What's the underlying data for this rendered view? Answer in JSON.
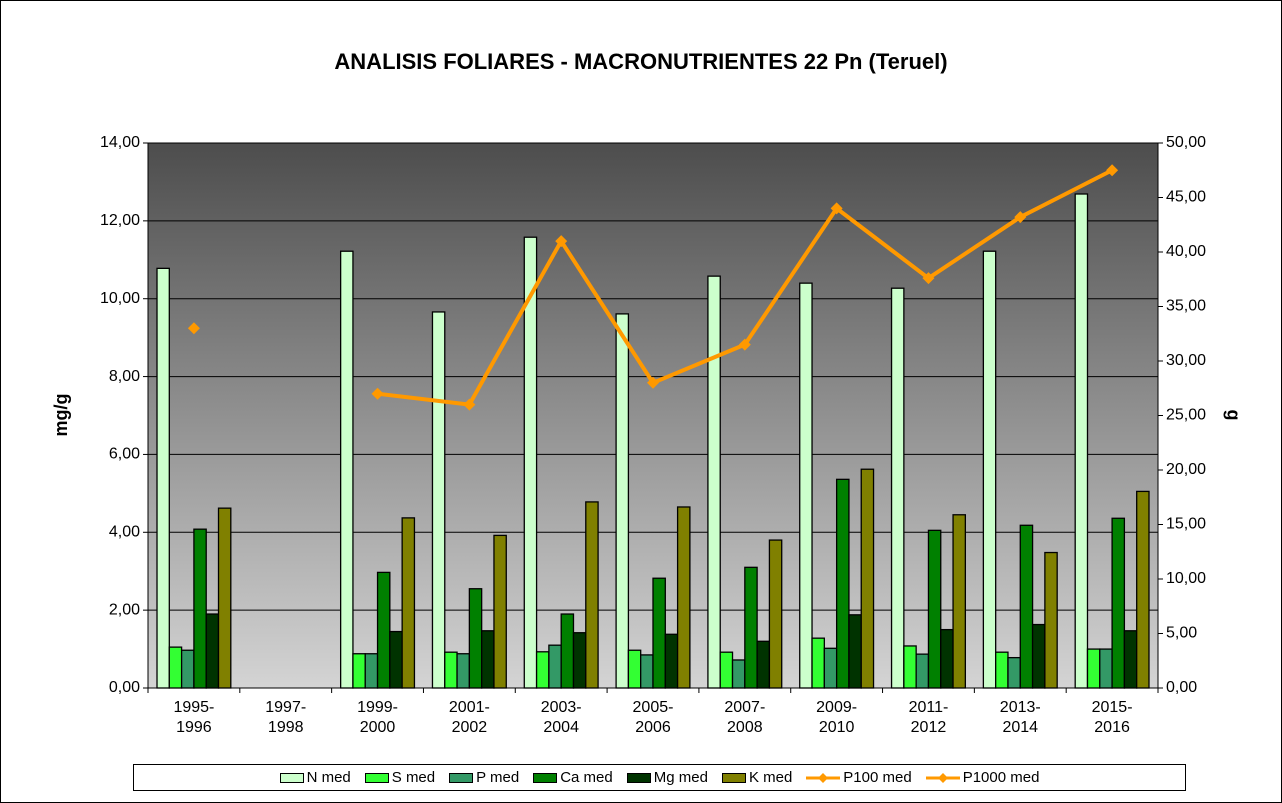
{
  "chart_data": {
    "type": "bar",
    "title": "ANALISIS FOLIARES - MACRONUTRIENTES 22 Pn (Teruel)",
    "y_label": "mg/g",
    "y2_label": "g",
    "categories": [
      "1995-1996",
      "1997-1998",
      "1999-2000",
      "2001-2002",
      "2003-2004",
      "2005-2006",
      "2007-2008",
      "2009-2010",
      "2011-2012",
      "2013-2014",
      "2015-2016"
    ],
    "series": [
      {
        "name": "N med",
        "type": "bar",
        "color": "#ccffcc",
        "values": [
          10.78,
          null,
          11.22,
          9.66,
          11.58,
          9.61,
          10.58,
          10.4,
          10.27,
          11.22,
          12.69
        ]
      },
      {
        "name": "S med",
        "type": "bar",
        "color": "#33ff33",
        "values": [
          1.05,
          null,
          0.88,
          0.92,
          0.93,
          0.97,
          0.92,
          1.28,
          1.08,
          0.92,
          1.0
        ]
      },
      {
        "name": "P med",
        "type": "bar",
        "color": "#339966",
        "values": [
          0.97,
          null,
          0.88,
          0.88,
          1.1,
          0.85,
          0.72,
          1.02,
          0.87,
          0.78,
          1.0
        ]
      },
      {
        "name": "Ca med",
        "type": "bar",
        "color": "#008000",
        "values": [
          4.08,
          null,
          2.97,
          2.55,
          1.9,
          2.82,
          3.1,
          5.36,
          4.05,
          4.18,
          4.36
        ]
      },
      {
        "name": "Mg med",
        "type": "bar",
        "color": "#003300",
        "values": [
          1.9,
          null,
          1.45,
          1.47,
          1.42,
          1.38,
          1.2,
          1.88,
          1.5,
          1.63,
          1.47
        ]
      },
      {
        "name": "K med",
        "type": "bar",
        "color": "#808000",
        "values": [
          4.62,
          null,
          4.37,
          3.92,
          4.78,
          4.65,
          3.8,
          5.62,
          4.45,
          3.48,
          5.05
        ]
      },
      {
        "name": "P100 med",
        "type": "line",
        "axis": "y2",
        "color": "#ff9900",
        "values": [
          33.0,
          null,
          27.0,
          26.0,
          41.0,
          28.0,
          31.5,
          44.0,
          37.6,
          43.2,
          47.5
        ]
      },
      {
        "name": "P1000 med",
        "type": "line",
        "axis": "y2",
        "color": "#ff9900",
        "values": [
          null,
          null,
          null,
          null,
          null,
          null,
          null,
          null,
          null,
          null,
          null
        ]
      }
    ],
    "ylim": [
      0,
      14
    ],
    "yticks": [
      {
        "value": 0,
        "label": "0,00"
      },
      {
        "value": 2,
        "label": "2,00"
      },
      {
        "value": 4,
        "label": "4,00"
      },
      {
        "value": 6,
        "label": "6,00"
      },
      {
        "value": 8,
        "label": "8,00"
      },
      {
        "value": 10,
        "label": "10,00"
      },
      {
        "value": 12,
        "label": "12,00"
      },
      {
        "value": 14,
        "label": "14,00"
      }
    ],
    "y2lim": [
      0,
      50
    ],
    "y2ticks": [
      {
        "value": 0,
        "label": "0,00"
      },
      {
        "value": 5,
        "label": "5,00"
      },
      {
        "value": 10,
        "label": "10,00"
      },
      {
        "value": 15,
        "label": "15,00"
      },
      {
        "value": 20,
        "label": "20,00"
      },
      {
        "value": 25,
        "label": "25,00"
      },
      {
        "value": 30,
        "label": "30,00"
      },
      {
        "value": 35,
        "label": "35,00"
      },
      {
        "value": 40,
        "label": "40,00"
      },
      {
        "value": 45,
        "label": "45,00"
      },
      {
        "value": 50,
        "label": "50,00"
      }
    ],
    "grid": true,
    "legend": "bottom"
  }
}
